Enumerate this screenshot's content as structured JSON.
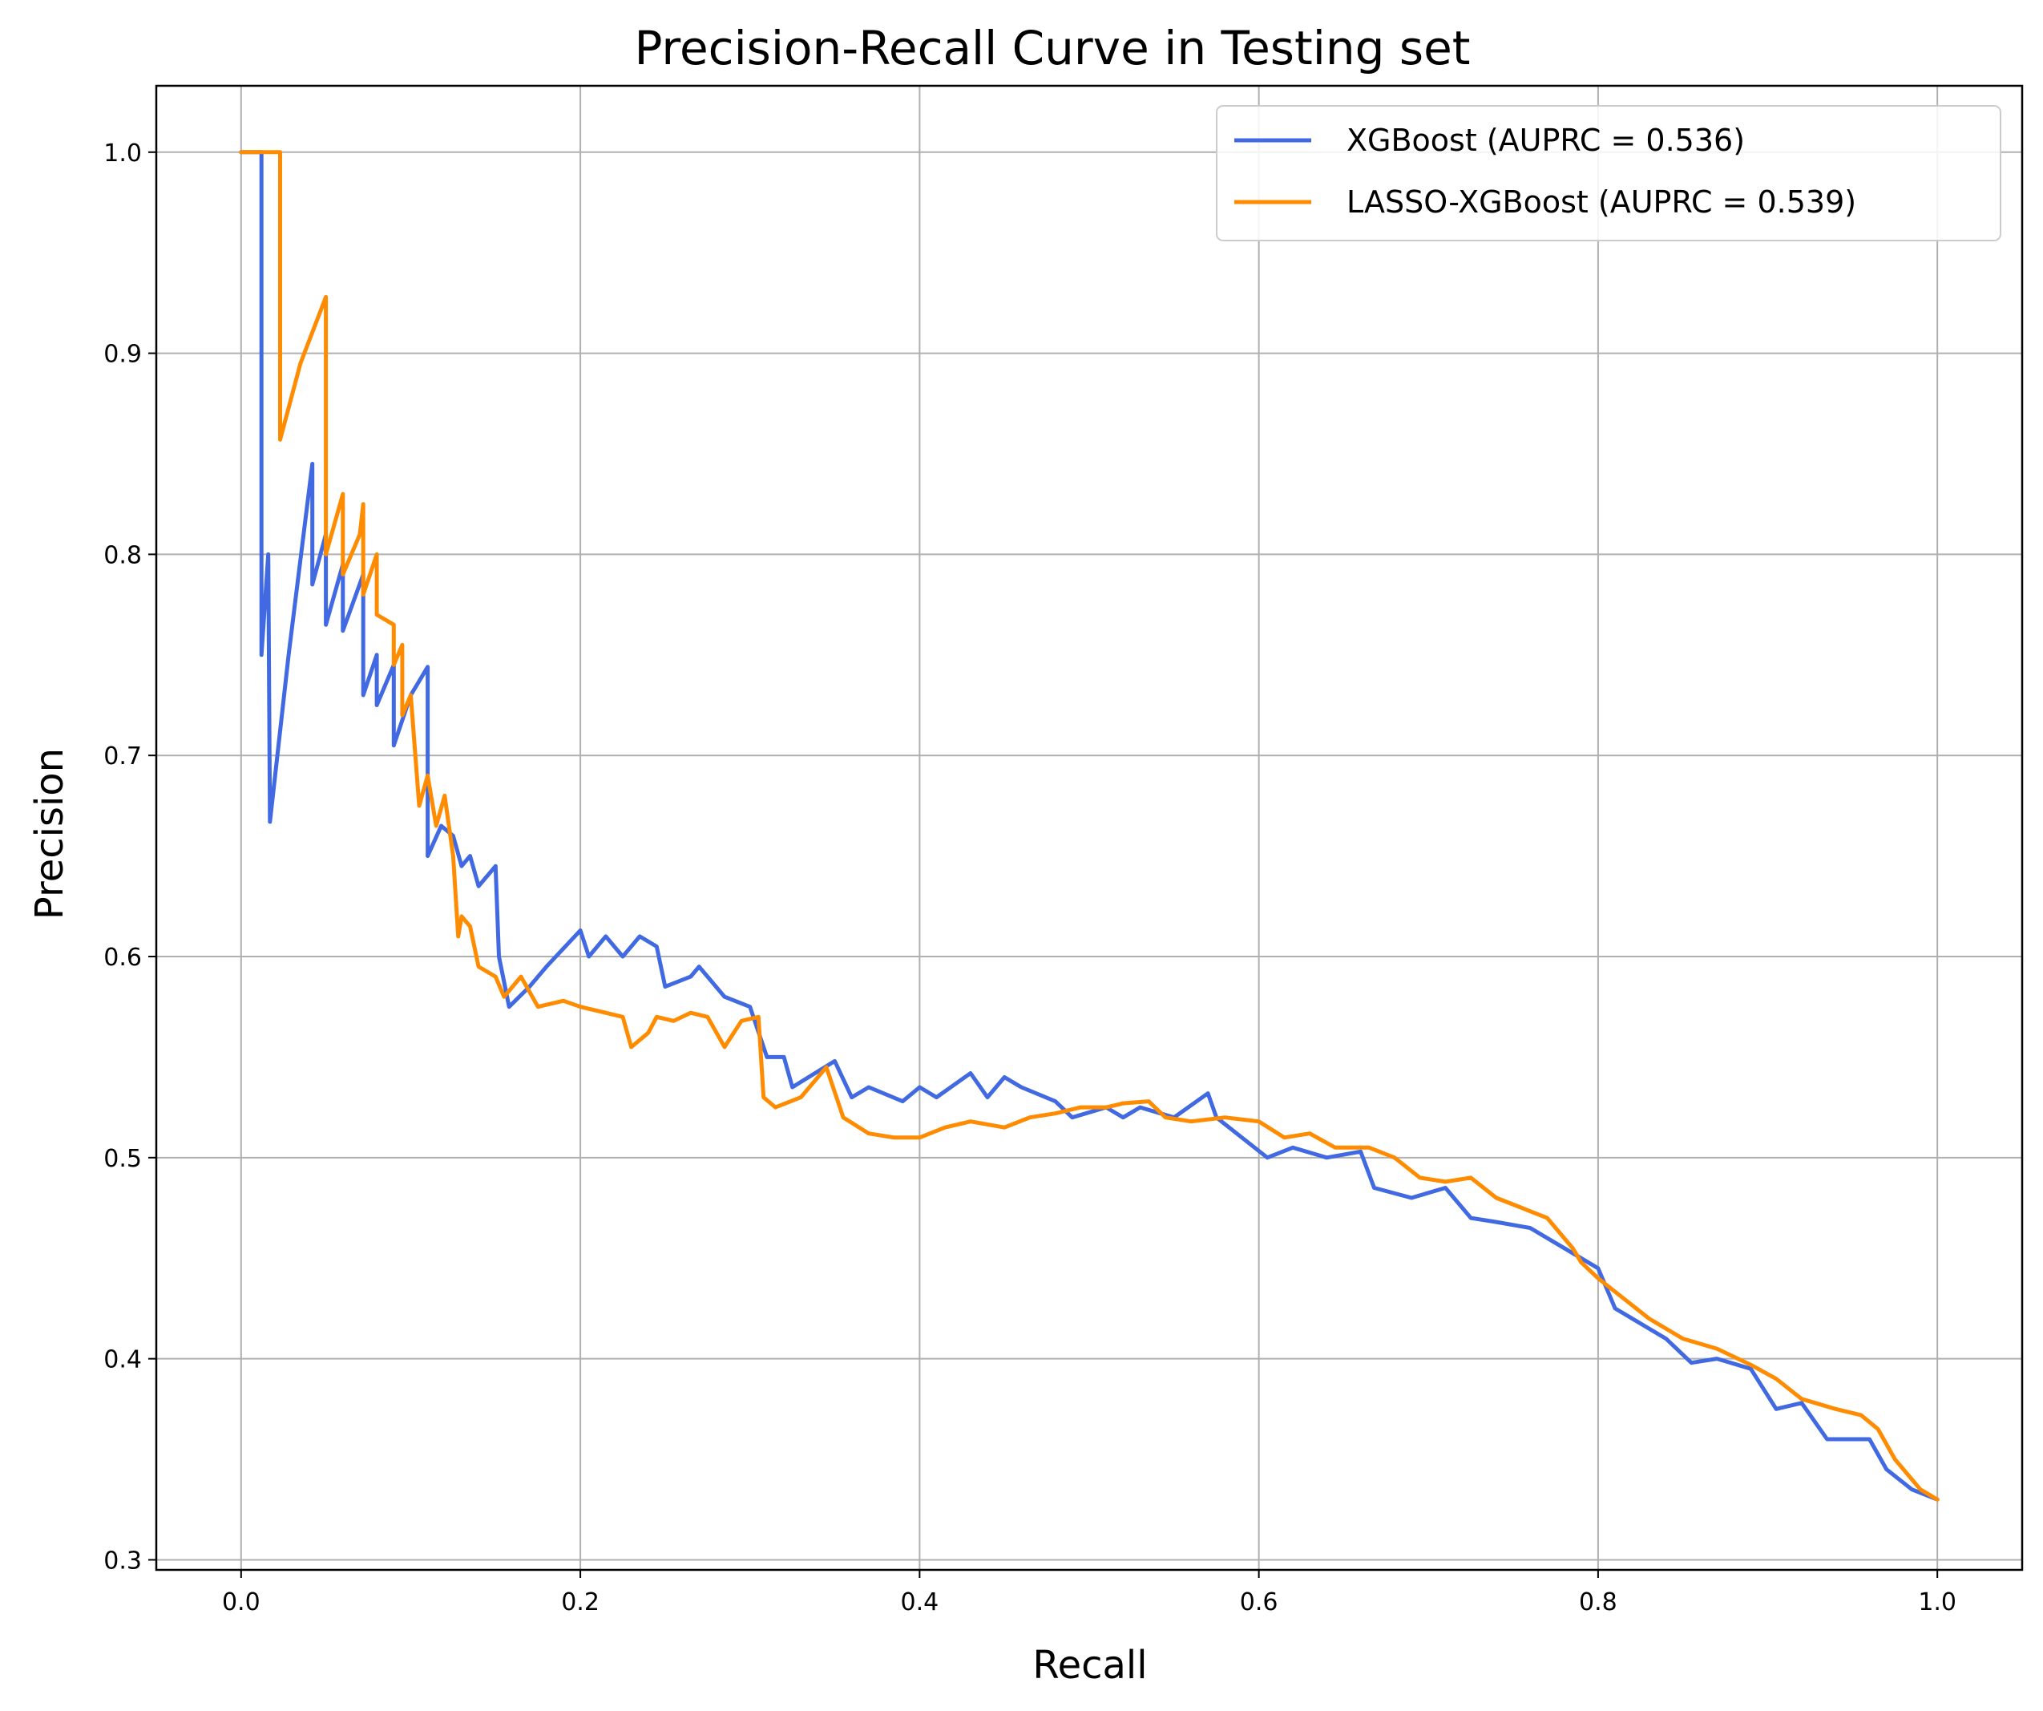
{
  "chart_data": {
    "type": "line",
    "title": "Precision-Recall Curve in Testing set",
    "xlabel": "Recall",
    "ylabel": "Precision",
    "xlim": [
      -0.05,
      1.05
    ],
    "ylim": [
      0.295,
      1.033
    ],
    "grid": true,
    "legend_position": "top-right",
    "x_ticks": [
      0.0,
      0.2,
      0.4,
      0.6,
      0.8,
      1.0
    ],
    "x_tick_labels": [
      "0.0",
      "0.2",
      "0.4",
      "0.6",
      "0.8",
      "1.0"
    ],
    "y_ticks": [
      0.3,
      0.4,
      0.5,
      0.6,
      0.7,
      0.8,
      0.9,
      1.0
    ],
    "y_tick_labels": [
      "0.3",
      "0.4",
      "0.5",
      "0.6",
      "0.7",
      "0.8",
      "0.9",
      "1.0"
    ],
    "series": [
      {
        "name": "XGBoost (AUPRC = 0.536)",
        "color": "#4169E1",
        "points": [
          [
            0.0,
            1.0
          ],
          [
            0.012,
            1.0
          ],
          [
            0.012,
            0.75
          ],
          [
            0.016,
            0.8
          ],
          [
            0.017,
            0.667
          ],
          [
            0.028,
            0.75
          ],
          [
            0.042,
            0.845
          ],
          [
            0.042,
            0.785
          ],
          [
            0.05,
            0.81
          ],
          [
            0.05,
            0.765
          ],
          [
            0.06,
            0.795
          ],
          [
            0.06,
            0.762
          ],
          [
            0.072,
            0.79
          ],
          [
            0.072,
            0.73
          ],
          [
            0.08,
            0.75
          ],
          [
            0.08,
            0.725
          ],
          [
            0.09,
            0.745
          ],
          [
            0.09,
            0.705
          ],
          [
            0.1,
            0.73
          ],
          [
            0.11,
            0.744
          ],
          [
            0.11,
            0.65
          ],
          [
            0.118,
            0.665
          ],
          [
            0.125,
            0.66
          ],
          [
            0.13,
            0.645
          ],
          [
            0.135,
            0.65
          ],
          [
            0.14,
            0.635
          ],
          [
            0.15,
            0.645
          ],
          [
            0.152,
            0.6
          ],
          [
            0.158,
            0.575
          ],
          [
            0.17,
            0.585
          ],
          [
            0.18,
            0.595
          ],
          [
            0.2,
            0.613
          ],
          [
            0.205,
            0.6
          ],
          [
            0.215,
            0.61
          ],
          [
            0.225,
            0.6
          ],
          [
            0.235,
            0.61
          ],
          [
            0.245,
            0.605
          ],
          [
            0.25,
            0.585
          ],
          [
            0.265,
            0.59
          ],
          [
            0.27,
            0.595
          ],
          [
            0.285,
            0.58
          ],
          [
            0.3,
            0.575
          ],
          [
            0.31,
            0.55
          ],
          [
            0.32,
            0.55
          ],
          [
            0.325,
            0.535
          ],
          [
            0.35,
            0.548
          ],
          [
            0.36,
            0.53
          ],
          [
            0.37,
            0.535
          ],
          [
            0.39,
            0.528
          ],
          [
            0.4,
            0.535
          ],
          [
            0.41,
            0.53
          ],
          [
            0.43,
            0.542
          ],
          [
            0.44,
            0.53
          ],
          [
            0.45,
            0.54
          ],
          [
            0.46,
            0.535
          ],
          [
            0.48,
            0.528
          ],
          [
            0.49,
            0.52
          ],
          [
            0.51,
            0.525
          ],
          [
            0.52,
            0.52
          ],
          [
            0.53,
            0.525
          ],
          [
            0.55,
            0.52
          ],
          [
            0.57,
            0.532
          ],
          [
            0.575,
            0.52
          ],
          [
            0.59,
            0.51
          ],
          [
            0.605,
            0.5
          ],
          [
            0.62,
            0.505
          ],
          [
            0.64,
            0.5
          ],
          [
            0.66,
            0.503
          ],
          [
            0.668,
            0.485
          ],
          [
            0.69,
            0.48
          ],
          [
            0.71,
            0.485
          ],
          [
            0.725,
            0.47
          ],
          [
            0.74,
            0.468
          ],
          [
            0.76,
            0.465
          ],
          [
            0.78,
            0.455
          ],
          [
            0.8,
            0.445
          ],
          [
            0.81,
            0.425
          ],
          [
            0.84,
            0.41
          ],
          [
            0.855,
            0.398
          ],
          [
            0.87,
            0.4
          ],
          [
            0.89,
            0.395
          ],
          [
            0.905,
            0.375
          ],
          [
            0.92,
            0.378
          ],
          [
            0.935,
            0.36
          ],
          [
            0.96,
            0.36
          ],
          [
            0.97,
            0.345
          ],
          [
            0.985,
            0.335
          ],
          [
            1.0,
            0.33
          ]
        ]
      },
      {
        "name": "LASSO-XGBoost (AUPRC = 0.539)",
        "color": "#FF8C00",
        "points": [
          [
            0.0,
            1.0
          ],
          [
            0.023,
            1.0
          ],
          [
            0.023,
            0.857
          ],
          [
            0.035,
            0.895
          ],
          [
            0.05,
            0.928
          ],
          [
            0.05,
            0.8
          ],
          [
            0.06,
            0.83
          ],
          [
            0.06,
            0.79
          ],
          [
            0.07,
            0.81
          ],
          [
            0.072,
            0.825
          ],
          [
            0.072,
            0.78
          ],
          [
            0.08,
            0.8
          ],
          [
            0.08,
            0.77
          ],
          [
            0.09,
            0.765
          ],
          [
            0.09,
            0.745
          ],
          [
            0.095,
            0.755
          ],
          [
            0.095,
            0.72
          ],
          [
            0.1,
            0.73
          ],
          [
            0.105,
            0.675
          ],
          [
            0.11,
            0.69
          ],
          [
            0.115,
            0.665
          ],
          [
            0.12,
            0.68
          ],
          [
            0.125,
            0.65
          ],
          [
            0.128,
            0.61
          ],
          [
            0.13,
            0.62
          ],
          [
            0.135,
            0.615
          ],
          [
            0.14,
            0.595
          ],
          [
            0.15,
            0.59
          ],
          [
            0.155,
            0.58
          ],
          [
            0.165,
            0.59
          ],
          [
            0.175,
            0.575
          ],
          [
            0.19,
            0.578
          ],
          [
            0.2,
            0.575
          ],
          [
            0.215,
            0.572
          ],
          [
            0.225,
            0.57
          ],
          [
            0.23,
            0.555
          ],
          [
            0.24,
            0.562
          ],
          [
            0.245,
            0.57
          ],
          [
            0.255,
            0.568
          ],
          [
            0.265,
            0.572
          ],
          [
            0.275,
            0.57
          ],
          [
            0.285,
            0.555
          ],
          [
            0.295,
            0.568
          ],
          [
            0.305,
            0.57
          ],
          [
            0.308,
            0.53
          ],
          [
            0.315,
            0.525
          ],
          [
            0.33,
            0.53
          ],
          [
            0.345,
            0.545
          ],
          [
            0.355,
            0.52
          ],
          [
            0.37,
            0.512
          ],
          [
            0.385,
            0.51
          ],
          [
            0.4,
            0.51
          ],
          [
            0.415,
            0.515
          ],
          [
            0.43,
            0.518
          ],
          [
            0.45,
            0.515
          ],
          [
            0.465,
            0.52
          ],
          [
            0.48,
            0.522
          ],
          [
            0.495,
            0.525
          ],
          [
            0.51,
            0.525
          ],
          [
            0.52,
            0.527
          ],
          [
            0.535,
            0.528
          ],
          [
            0.545,
            0.52
          ],
          [
            0.56,
            0.518
          ],
          [
            0.58,
            0.52
          ],
          [
            0.6,
            0.518
          ],
          [
            0.615,
            0.51
          ],
          [
            0.63,
            0.512
          ],
          [
            0.645,
            0.505
          ],
          [
            0.665,
            0.505
          ],
          [
            0.68,
            0.5
          ],
          [
            0.695,
            0.49
          ],
          [
            0.71,
            0.488
          ],
          [
            0.725,
            0.49
          ],
          [
            0.74,
            0.48
          ],
          [
            0.755,
            0.475
          ],
          [
            0.77,
            0.47
          ],
          [
            0.785,
            0.455
          ],
          [
            0.79,
            0.448
          ],
          [
            0.8,
            0.44
          ],
          [
            0.815,
            0.43
          ],
          [
            0.83,
            0.42
          ],
          [
            0.85,
            0.41
          ],
          [
            0.87,
            0.405
          ],
          [
            0.89,
            0.397
          ],
          [
            0.905,
            0.39
          ],
          [
            0.92,
            0.38
          ],
          [
            0.94,
            0.375
          ],
          [
            0.955,
            0.372
          ],
          [
            0.965,
            0.365
          ],
          [
            0.975,
            0.35
          ],
          [
            0.985,
            0.34
          ],
          [
            0.99,
            0.335
          ],
          [
            1.0,
            0.33
          ]
        ]
      }
    ]
  }
}
